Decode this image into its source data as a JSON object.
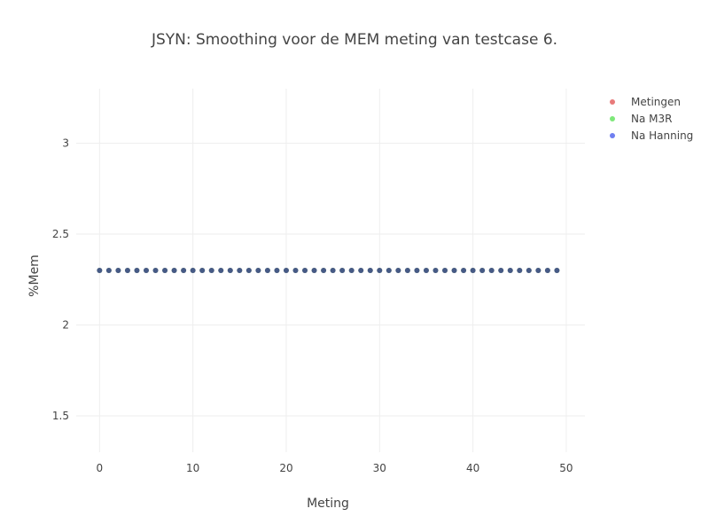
{
  "chart_data": {
    "type": "scatter",
    "title": "JSYN: Smoothing voor de MEM meting van testcase 6.",
    "xlabel": "Meting",
    "ylabel": "%Mem",
    "xlim": [
      -2.5,
      52
    ],
    "ylim": [
      1.3,
      3.3
    ],
    "x_ticks": [
      0,
      10,
      20,
      30,
      40,
      50
    ],
    "y_ticks": [
      1.5,
      2,
      2.5,
      3
    ],
    "y_tick_labels": [
      "1.5",
      "2",
      "2.5",
      "3"
    ],
    "grid": true,
    "legend_position": "top-right",
    "x": [
      0,
      1,
      2,
      3,
      4,
      5,
      6,
      7,
      8,
      9,
      10,
      11,
      12,
      13,
      14,
      15,
      16,
      17,
      18,
      19,
      20,
      21,
      22,
      23,
      24,
      25,
      26,
      27,
      28,
      29,
      30,
      31,
      32,
      33,
      34,
      35,
      36,
      37,
      38,
      39,
      40,
      41,
      42,
      43,
      44,
      45,
      46,
      47,
      48,
      49
    ],
    "series": [
      {
        "name": "Metingen",
        "color": "#e87a7a",
        "values": [
          2.3,
          2.3,
          2.3,
          2.3,
          2.3,
          2.3,
          2.3,
          2.3,
          2.3,
          2.3,
          2.3,
          2.3,
          2.3,
          2.3,
          2.3,
          2.3,
          2.3,
          2.3,
          2.3,
          2.3,
          2.3,
          2.3,
          2.3,
          2.3,
          2.3,
          2.3,
          2.3,
          2.3,
          2.3,
          2.3,
          2.3,
          2.3,
          2.3,
          2.3,
          2.3,
          2.3,
          2.3,
          2.3,
          2.3,
          2.3,
          2.3,
          2.3,
          2.3,
          2.3,
          2.3,
          2.3,
          2.3,
          2.3,
          2.3,
          2.3
        ]
      },
      {
        "name": "Na M3R",
        "color": "#7ee87a",
        "values": [
          2.3,
          2.3,
          2.3,
          2.3,
          2.3,
          2.3,
          2.3,
          2.3,
          2.3,
          2.3,
          2.3,
          2.3,
          2.3,
          2.3,
          2.3,
          2.3,
          2.3,
          2.3,
          2.3,
          2.3,
          2.3,
          2.3,
          2.3,
          2.3,
          2.3,
          2.3,
          2.3,
          2.3,
          2.3,
          2.3,
          2.3,
          2.3,
          2.3,
          2.3,
          2.3,
          2.3,
          2.3,
          2.3,
          2.3,
          2.3,
          2.3,
          2.3,
          2.3,
          2.3,
          2.3,
          2.3,
          2.3,
          2.3,
          2.3,
          2.3
        ]
      },
      {
        "name": "Na Hanning",
        "color": "#6f7ff0",
        "values": [
          2.3,
          2.3,
          2.3,
          2.3,
          2.3,
          2.3,
          2.3,
          2.3,
          2.3,
          2.3,
          2.3,
          2.3,
          2.3,
          2.3,
          2.3,
          2.3,
          2.3,
          2.3,
          2.3,
          2.3,
          2.3,
          2.3,
          2.3,
          2.3,
          2.3,
          2.3,
          2.3,
          2.3,
          2.3,
          2.3,
          2.3,
          2.3,
          2.3,
          2.3,
          2.3,
          2.3,
          2.3,
          2.3,
          2.3,
          2.3,
          2.3,
          2.3,
          2.3,
          2.3,
          2.3,
          2.3,
          2.3,
          2.3,
          2.3,
          2.3
        ]
      }
    ],
    "overlap_marker_color": "#465a86"
  }
}
